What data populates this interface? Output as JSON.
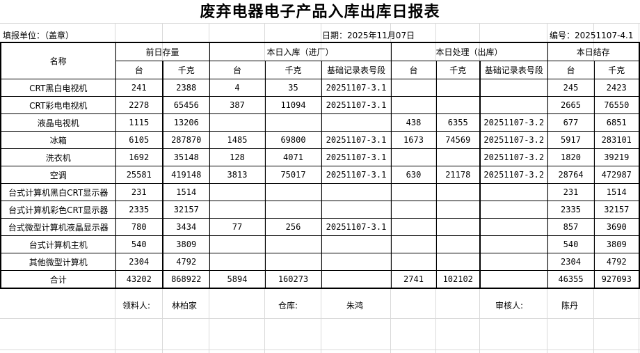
{
  "title": "废弃电器电子产品入库出库日报表",
  "info": {
    "unit": "填报单位：（盖章）",
    "date": "日期：2025年11月07日",
    "number": "编号：20251107-4.1"
  },
  "headers": {
    "name": "名称",
    "prev": "前日存量",
    "in": "本日入库（进厂）",
    "out": "本日处理（出库）",
    "stock": "本日结存",
    "unit_tai": "台",
    "unit_kg": "千克",
    "record": "基础记录表号段"
  },
  "rows": [
    [
      "CRT黑白电视机",
      "241",
      "2388",
      "4",
      "35",
      "20251107-3.1",
      "",
      "",
      "",
      "245",
      "2423"
    ],
    [
      "CRT彩电电视机",
      "2278",
      "65456",
      "387",
      "11094",
      "20251107-3.1",
      "",
      "",
      "",
      "2665",
      "76550"
    ],
    [
      "液晶电视机",
      "1115",
      "13206",
      "",
      "",
      "",
      "438",
      "6355",
      "20251107-3.2",
      "677",
      "6851"
    ],
    [
      "冰箱",
      "6105",
      "287870",
      "1485",
      "69800",
      "20251107-3.1",
      "1673",
      "74569",
      "20251107-3.2",
      "5917",
      "283101"
    ],
    [
      "洗衣机",
      "1692",
      "35148",
      "128",
      "4071",
      "20251107-3.1",
      "",
      "",
      "20251107-3.2",
      "1820",
      "39219"
    ],
    [
      "空调",
      "25581",
      "419148",
      "3813",
      "75017",
      "20251107-3.1",
      "630",
      "21178",
      "20251107-3.2",
      "28764",
      "472987"
    ],
    [
      "台式计算机黑白CRT显示器",
      "231",
      "1514",
      "",
      "",
      "",
      "",
      "",
      "",
      "231",
      "1514"
    ],
    [
      "台式计算机彩色CRT显示器",
      "2335",
      "32157",
      "",
      "",
      "",
      "",
      "",
      "",
      "2335",
      "32157"
    ],
    [
      "台式微型计算机液晶显示器",
      "780",
      "3434",
      "77",
      "256",
      "20251107-3.1",
      "",
      "",
      "",
      "857",
      "3690"
    ],
    [
      "台式计算机主机",
      "540",
      "3809",
      "",
      "",
      "",
      "",
      "",
      "",
      "540",
      "3809"
    ],
    [
      "其他微型计算机",
      "2304",
      "4792",
      "",
      "",
      "",
      "",
      "",
      "",
      "2304",
      "4792"
    ],
    [
      "合计",
      "43202",
      "868922",
      "5894",
      "160273",
      "",
      "2741",
      "102102",
      "",
      "46355",
      "927093"
    ]
  ],
  "footer": {
    "receiver_label": "领料人:",
    "receiver": "林柏家",
    "warehouse_label": "仓库:",
    "warehouse": "朱鸿",
    "auditor_label": "审核人:",
    "auditor": "陈丹"
  }
}
